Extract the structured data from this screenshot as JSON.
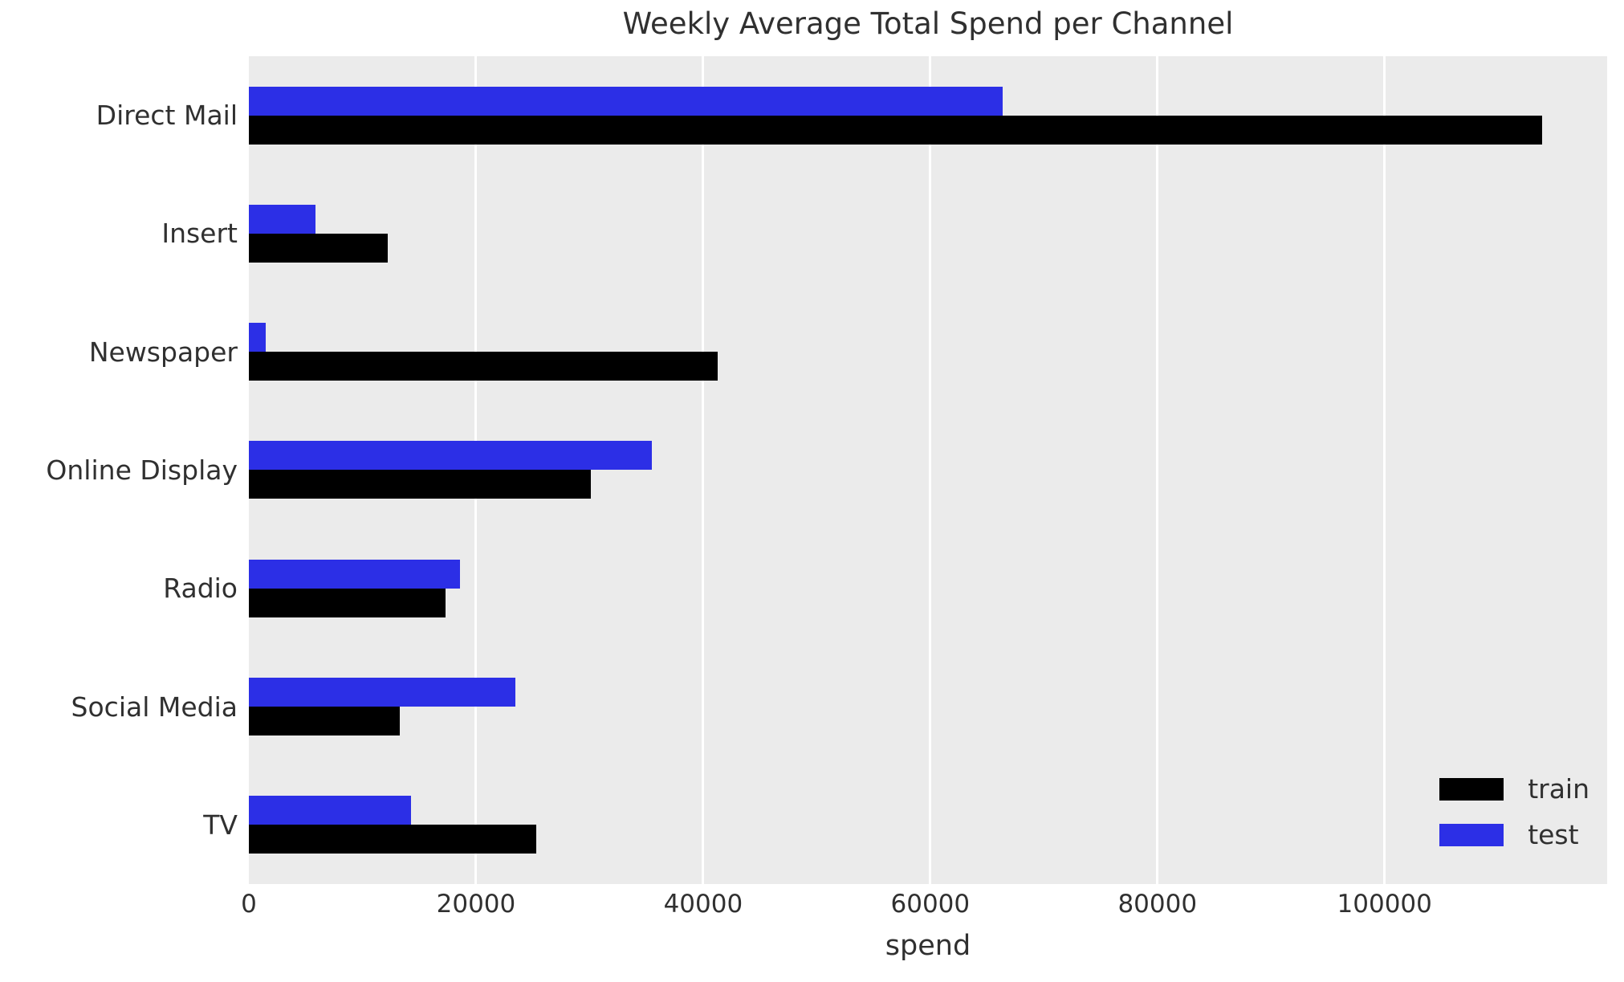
{
  "title": "Weekly Average Total Spend per Channel",
  "chart_data": {
    "type": "bar",
    "orientation": "horizontal",
    "title": "Weekly Average Total Spend per Channel",
    "xlabel": "spend",
    "ylabel": "",
    "categories": [
      "Direct Mail",
      "Insert",
      "Newspaper",
      "Online Display",
      "Radio",
      "Social Media",
      "TV"
    ],
    "series": [
      {
        "name": "train",
        "color": "#000000",
        "values": [
          113900,
          12200,
          41300,
          30100,
          17300,
          13300,
          25300
        ]
      },
      {
        "name": "test",
        "color": "#2c2fe6",
        "values": [
          66400,
          5900,
          1500,
          35500,
          18600,
          23500,
          14300
        ]
      }
    ],
    "bar_order_top_to_bottom": [
      "test",
      "train"
    ],
    "xlim": [
      0,
      119600
    ],
    "xticks": [
      0,
      20000,
      40000,
      60000,
      80000,
      100000
    ],
    "grid": true,
    "grid_color": "#ffffff",
    "plot_bg": "#ebebeb",
    "text_color": "#303030",
    "legend": {
      "position": "lower right",
      "entries": [
        {
          "label": "train",
          "color": "#000000"
        },
        {
          "label": "test",
          "color": "#2c2fe6"
        }
      ]
    }
  }
}
